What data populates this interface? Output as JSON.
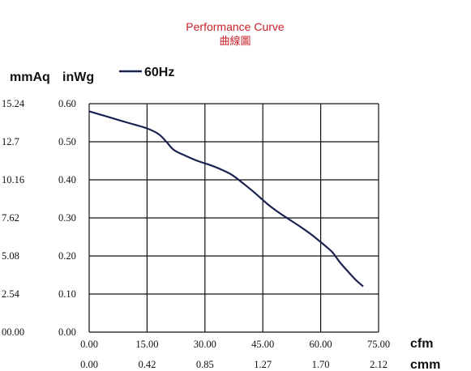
{
  "chart_data": {
    "type": "line",
    "title": "Performance Curve",
    "subtitle": "曲線圖",
    "y_units": [
      "mmAq",
      "inWg"
    ],
    "x_units": [
      "cfm",
      "cmm"
    ],
    "legend": "60Hz",
    "legend_position": "top-left",
    "grid": true,
    "xlim": [
      0,
      75
    ],
    "ylim": [
      0,
      0.6
    ],
    "x_ticks_cfm": [
      "0.00",
      "15.00",
      "30.00",
      "45.00",
      "60.00",
      "75.00"
    ],
    "x_ticks_cmm": [
      "0.00",
      "0.42",
      "0.85",
      "1.27",
      "1.70",
      "2.12"
    ],
    "y_ticks_inwg": [
      "0.00",
      "0.10",
      "0.20",
      "0.30",
      "0.40",
      "0.50",
      "0.60"
    ],
    "y_ticks_mmaq": [
      "00.00",
      "2.54",
      "5.08",
      "7.62",
      "10.16",
      "12.7",
      "15.24"
    ],
    "series": [
      {
        "name": "60Hz",
        "color": "#1a2350",
        "points": [
          [
            0.0,
            0.58
          ],
          [
            5.0,
            0.565
          ],
          [
            10.0,
            0.55
          ],
          [
            15.0,
            0.535
          ],
          [
            18.0,
            0.52
          ],
          [
            20.0,
            0.5
          ],
          [
            22.0,
            0.478
          ],
          [
            25.0,
            0.463
          ],
          [
            28.0,
            0.45
          ],
          [
            31.0,
            0.44
          ],
          [
            34.0,
            0.428
          ],
          [
            37.0,
            0.413
          ],
          [
            40.0,
            0.39
          ],
          [
            43.0,
            0.365
          ],
          [
            46.0,
            0.338
          ],
          [
            49.0,
            0.315
          ],
          [
            52.0,
            0.295
          ],
          [
            55.0,
            0.275
          ],
          [
            58.0,
            0.253
          ],
          [
            61.0,
            0.228
          ],
          [
            63.0,
            0.21
          ],
          [
            65.0,
            0.183
          ],
          [
            67.0,
            0.16
          ],
          [
            69.0,
            0.138
          ],
          [
            71.0,
            0.12
          ]
        ]
      }
    ]
  }
}
